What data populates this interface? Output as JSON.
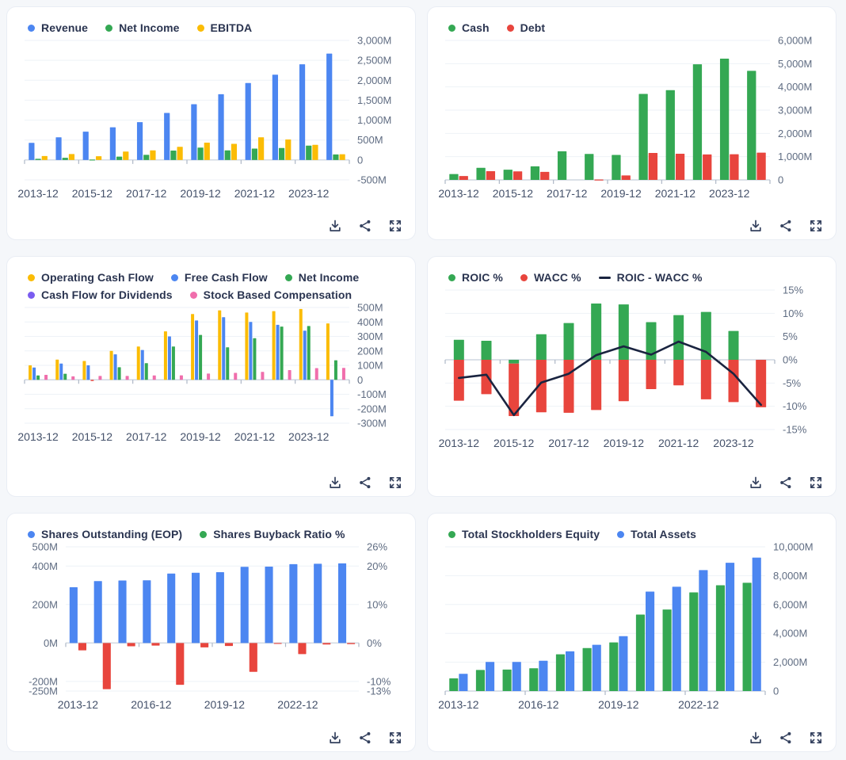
{
  "page": {
    "background": "#f5f7fa",
    "card_background": "#ffffff",
    "card_border": "#e9edf4"
  },
  "colors": {
    "blue": "#4c86f1",
    "green": "#34a853",
    "red": "#e8453d",
    "yellow": "#fbbc05",
    "pink": "#f06eac",
    "purple": "#7a5cf0",
    "navy_line": "#1a2440",
    "legend_text": "#2a3450",
    "axis_text": "#5f6c82",
    "x_text": "#44516a",
    "gridline": "#eef2f7",
    "axis_line": "#cfd7e1",
    "tick_mark": "#aeb8c6",
    "icon": "#34415e"
  },
  "action_icons": [
    {
      "name": "download-icon"
    },
    {
      "name": "share-icon"
    },
    {
      "name": "expand-icon"
    }
  ],
  "charts": [
    {
      "id": "revenue-net-income-ebitda",
      "legend": [
        {
          "label": "Revenue",
          "color": "#4c86f1",
          "marker": "dot"
        },
        {
          "label": "Net Income",
          "color": "#34a853",
          "marker": "dot"
        },
        {
          "label": "EBITDA",
          "color": "#fbbc05",
          "marker": "dot"
        }
      ],
      "chart_data": {
        "type": "bar",
        "categories": [
          "2013-12",
          "2014-12",
          "2015-12",
          "2016-12",
          "2017-12",
          "2018-12",
          "2019-12",
          "2020-12",
          "2021-12",
          "2022-12",
          "2023-12",
          "2024-12"
        ],
        "x_tick_labels": [
          "2013-12",
          "2015-12",
          "2017-12",
          "2019-12",
          "2021-12",
          "2023-12"
        ],
        "x_label_interval": 2,
        "series": [
          {
            "name": "Revenue",
            "type": "bar",
            "color": "#4c86f1",
            "values": [
              430,
              570,
              710,
              820,
              950,
              1180,
              1400,
              1650,
              1930,
              2140,
              2400,
              2670
            ]
          },
          {
            "name": "Net Income",
            "type": "bar",
            "color": "#34a853",
            "values": [
              30,
              55,
              10,
              85,
              130,
              235,
              310,
              240,
              285,
              300,
              360,
              140
            ]
          },
          {
            "name": "EBITDA",
            "type": "bar",
            "color": "#fbbc05",
            "values": [
              100,
              150,
              95,
              210,
              240,
              330,
              435,
              405,
              570,
              515,
              380,
              145
            ]
          }
        ],
        "unit": "M USD",
        "ylim": [
          -500,
          3000
        ],
        "y_axis_side": "right",
        "grid": true,
        "legend_position": "top",
        "y_ticks": [
          {
            "value": 3000,
            "label": "3,000M"
          },
          {
            "value": 2500,
            "label": "2,500M"
          },
          {
            "value": 2000,
            "label": "2,000M"
          },
          {
            "value": 1500,
            "label": "1,500M"
          },
          {
            "value": 1000,
            "label": "1,000M"
          },
          {
            "value": 500,
            "label": "500M"
          },
          {
            "value": 0,
            "label": "0"
          },
          {
            "value": -500,
            "label": "-500M"
          }
        ]
      }
    },
    {
      "id": "cash-debt",
      "legend": [
        {
          "label": "Cash",
          "color": "#34a853",
          "marker": "dot"
        },
        {
          "label": "Debt",
          "color": "#e8453d",
          "marker": "dot"
        }
      ],
      "chart_data": {
        "type": "bar",
        "categories": [
          "2013-12",
          "2014-12",
          "2015-12",
          "2016-12",
          "2017-12",
          "2018-12",
          "2019-12",
          "2020-12",
          "2021-12",
          "2022-12",
          "2023-12",
          "2024-12"
        ],
        "x_tick_labels": [
          "2013-12",
          "2015-12",
          "2017-12",
          "2019-12",
          "2021-12",
          "2023-12"
        ],
        "x_label_interval": 2,
        "series": [
          {
            "name": "Cash",
            "type": "bar",
            "color": "#34a853",
            "values": [
              250,
              520,
              440,
              585,
              1230,
              1115,
              1075,
              3700,
              3860,
              4975,
              5215,
              4690
            ]
          },
          {
            "name": "Debt",
            "type": "bar",
            "color": "#e8453d",
            "values": [
              165,
              375,
              365,
              345,
              0,
              15,
              190,
              1160,
              1125,
              1095,
              1105,
              1170
            ]
          }
        ],
        "unit": "M USD",
        "ylim": [
          0,
          6000
        ],
        "y_axis_side": "right",
        "grid": true,
        "legend_position": "top",
        "y_ticks": [
          {
            "value": 6000,
            "label": "6,000M"
          },
          {
            "value": 5000,
            "label": "5,000M"
          },
          {
            "value": 4000,
            "label": "4,000M"
          },
          {
            "value": 3000,
            "label": "3,000M"
          },
          {
            "value": 2000,
            "label": "2,000M"
          },
          {
            "value": 1000,
            "label": "1,000M"
          },
          {
            "value": 0,
            "label": "0"
          }
        ]
      }
    },
    {
      "id": "cash-flow-breakdown",
      "legend": [
        {
          "label": "Operating Cash Flow",
          "color": "#fbbc05",
          "marker": "dot"
        },
        {
          "label": "Free Cash Flow",
          "color": "#4c86f1",
          "marker": "dot"
        },
        {
          "label": "Net Income",
          "color": "#34a853",
          "marker": "dot"
        },
        {
          "label": "Cash Flow for Dividends",
          "color": "#7a5cf0",
          "marker": "dot"
        },
        {
          "label": "Stock Based Compensation",
          "color": "#f06eac",
          "marker": "dot"
        }
      ],
      "chart_data": {
        "type": "bar",
        "categories": [
          "2013-12",
          "2014-12",
          "2015-12",
          "2016-12",
          "2017-12",
          "2018-12",
          "2019-12",
          "2020-12",
          "2021-12",
          "2022-12",
          "2023-12",
          "2024-12"
        ],
        "x_tick_labels": [
          "2013-12",
          "2015-12",
          "2017-12",
          "2019-12",
          "2021-12",
          "2023-12"
        ],
        "x_label_interval": 2,
        "series": [
          {
            "name": "Operating Cash Flow",
            "type": "bar",
            "color": "#fbbc05",
            "values": [
              100,
              140,
              130,
              200,
              230,
              335,
              455,
              480,
              465,
              475,
              490,
              390
            ]
          },
          {
            "name": "Free Cash Flow",
            "type": "bar",
            "color": "#4c86f1",
            "values": [
              85,
              112,
              100,
              176,
              206,
              300,
              410,
              433,
              400,
              380,
              340,
              -252
            ]
          },
          {
            "name": "Net Income",
            "type": "bar",
            "color": "#34a853",
            "negative_color": "#e8453d",
            "values": [
              30,
              42,
              -8,
              87,
              115,
              230,
              310,
              225,
              288,
              368,
              372,
              135
            ]
          },
          {
            "name": "Cash Flow for Dividends",
            "type": "bar",
            "color": "#7a5cf0",
            "values": [
              0,
              0,
              0,
              0,
              0,
              0,
              0,
              0,
              0,
              0,
              0,
              0
            ]
          },
          {
            "name": "Stock Based Compensation",
            "type": "bar",
            "color": "#f06eac",
            "values": [
              34,
              24,
              27,
              27,
              30,
              31,
              43,
              48,
              55,
              67,
              81,
              82
            ]
          }
        ],
        "unit": "M USD",
        "ylim": [
          -300,
          500
        ],
        "y_axis_side": "right",
        "grid": true,
        "legend_position": "top",
        "y_ticks": [
          {
            "value": 500,
            "label": "500M"
          },
          {
            "value": 400,
            "label": "400M"
          },
          {
            "value": 300,
            "label": "300M"
          },
          {
            "value": 200,
            "label": "200M"
          },
          {
            "value": 100,
            "label": "100M"
          },
          {
            "value": 0,
            "label": "0"
          },
          {
            "value": -100,
            "label": "-100M"
          },
          {
            "value": -200,
            "label": "-200M"
          },
          {
            "value": -300,
            "label": "-300M"
          }
        ]
      }
    },
    {
      "id": "roic-wacc",
      "legend": [
        {
          "label": "ROIC %",
          "color": "#34a853",
          "marker": "dot"
        },
        {
          "label": "WACC %",
          "color": "#e8453d",
          "marker": "dot"
        },
        {
          "label": "ROIC - WACC %",
          "color": "#1a2440",
          "marker": "dash"
        }
      ],
      "chart_data": {
        "type": "bar",
        "categories": [
          "2013-12",
          "2014-12",
          "2015-12",
          "2016-12",
          "2017-12",
          "2018-12",
          "2019-12",
          "2020-12",
          "2021-12",
          "2022-12",
          "2023-12",
          "2024-12"
        ],
        "x_tick_labels": [
          "2013-12",
          "2015-12",
          "2017-12",
          "2019-12",
          "2021-12",
          "2023-12"
        ],
        "x_label_interval": 2,
        "series": [
          {
            "name": "ROIC %",
            "type": "bar",
            "stack": true,
            "color": "#34a853",
            "values": [
              4.3,
              4.1,
              -0.8,
              5.5,
              7.9,
              12.1,
              11.9,
              8.1,
              9.6,
              10.3,
              6.2,
              0
            ]
          },
          {
            "name": "WACC %",
            "type": "bar",
            "stack": true,
            "color": "#e8453d",
            "values": [
              -8.8,
              -7.4,
              -11.3,
              -11.3,
              -11.4,
              -10.8,
              -8.9,
              -6.3,
              -5.5,
              -8.5,
              -9.1,
              -10.2
            ]
          },
          {
            "name": "ROIC - WACC %",
            "type": "line",
            "color": "#1a2440",
            "values": [
              -3.9,
              -3.2,
              -11.9,
              -4.9,
              -3.0,
              1.0,
              2.9,
              1.1,
              3.9,
              1.7,
              -3.0,
              -9.7
            ]
          }
        ],
        "unit": "%",
        "ylim": [
          -15,
          15
        ],
        "y_axis_side": "right",
        "grid": true,
        "legend_position": "top",
        "y_ticks": [
          {
            "value": 15,
            "label": "15%"
          },
          {
            "value": 10,
            "label": "10%"
          },
          {
            "value": 5,
            "label": "5%"
          },
          {
            "value": 0,
            "label": "0%"
          },
          {
            "value": -5,
            "label": "-5%"
          },
          {
            "value": -10,
            "label": "-10%"
          },
          {
            "value": -15,
            "label": "-15%"
          }
        ]
      }
    },
    {
      "id": "shares-outstanding-buyback",
      "legend": [
        {
          "label": "Shares Outstanding (EOP)",
          "color": "#4c86f1",
          "marker": "dot"
        },
        {
          "label": "Shares Buyback Ratio %",
          "color": "#34a853",
          "marker": "dot"
        }
      ],
      "chart_data": {
        "type": "bar",
        "categories": [
          "2013-12",
          "2014-12",
          "2015-12",
          "2016-12",
          "2017-12",
          "2018-12",
          "2019-12",
          "2020-12",
          "2021-12",
          "2022-12",
          "2023-12",
          "2024-12"
        ],
        "x_tick_labels": [
          "2013-12",
          "2016-12",
          "2019-12",
          "2022-12"
        ],
        "x_label_interval": 3,
        "series": [
          {
            "name": "Shares Outstanding (EOP)",
            "type": "bar",
            "axis": "left",
            "color": "#4c86f1",
            "values": [
              290,
              322,
              325,
              326,
              361,
              365,
              368,
              396,
              397,
              410,
              412,
              414
            ]
          },
          {
            "name": "Shares Buyback Ratio %",
            "type": "bar",
            "axis": "right",
            "color": "#e8453d",
            "values": [
              -2.0,
              -12.5,
              -0.9,
              -0.7,
              -11.3,
              -1.2,
              -0.8,
              -7.8,
              -0.2,
              -3.0,
              -0.4,
              -0.3
            ]
          }
        ],
        "unit_left": "M shares",
        "unit_right": "%",
        "ylim": [
          -250,
          500
        ],
        "ylim_right": [
          -13,
          26
        ],
        "y_axis_side": "both",
        "grid": true,
        "legend_position": "top",
        "y_ticks": [
          {
            "value": 500,
            "label": "500M",
            "right_label": "26%"
          },
          {
            "value": 400,
            "label": "400M",
            "right_label": "20%"
          },
          {
            "value": 200,
            "label": "200M",
            "right_label": "10%"
          },
          {
            "value": 0,
            "label": "0M",
            "right_label": "0%"
          },
          {
            "value": -200,
            "label": "-200M",
            "right_label": "-10%"
          },
          {
            "value": -250,
            "label": "-250M",
            "right_label": "-13%"
          }
        ]
      }
    },
    {
      "id": "equity-assets",
      "legend": [
        {
          "label": "Total Stockholders Equity",
          "color": "#34a853",
          "marker": "dot"
        },
        {
          "label": "Total Assets",
          "color": "#4c86f1",
          "marker": "dot"
        }
      ],
      "chart_data": {
        "type": "bar",
        "categories": [
          "2013-12",
          "2014-12",
          "2015-12",
          "2016-12",
          "2017-12",
          "2018-12",
          "2019-12",
          "2020-12",
          "2021-12",
          "2022-12",
          "2023-12",
          "2024-12"
        ],
        "x_tick_labels": [
          "2013-12",
          "2016-12",
          "2019-12",
          "2022-12"
        ],
        "x_label_interval": 3,
        "series": [
          {
            "name": "Total Stockholders Equity",
            "type": "bar",
            "color": "#34a853",
            "values": [
              880,
              1460,
              1490,
              1580,
              2545,
              2980,
              3370,
              5300,
              5650,
              6840,
              7335,
              7510
            ]
          },
          {
            "name": "Total Assets",
            "type": "bar",
            "color": "#4c86f1",
            "values": [
              1195,
              2020,
              2020,
              2105,
              2755,
              3210,
              3805,
              6895,
              7230,
              8385,
              8895,
              9250
            ]
          }
        ],
        "unit": "M USD",
        "ylim": [
          0,
          10000
        ],
        "y_axis_side": "right",
        "grid": true,
        "legend_position": "top",
        "y_ticks": [
          {
            "value": 10000,
            "label": "10,000M"
          },
          {
            "value": 8000,
            "label": "8,000M"
          },
          {
            "value": 6000,
            "label": "6,000M"
          },
          {
            "value": 4000,
            "label": "4,000M"
          },
          {
            "value": 2000,
            "label": "2,000M"
          },
          {
            "value": 0,
            "label": "0"
          }
        ]
      }
    }
  ]
}
